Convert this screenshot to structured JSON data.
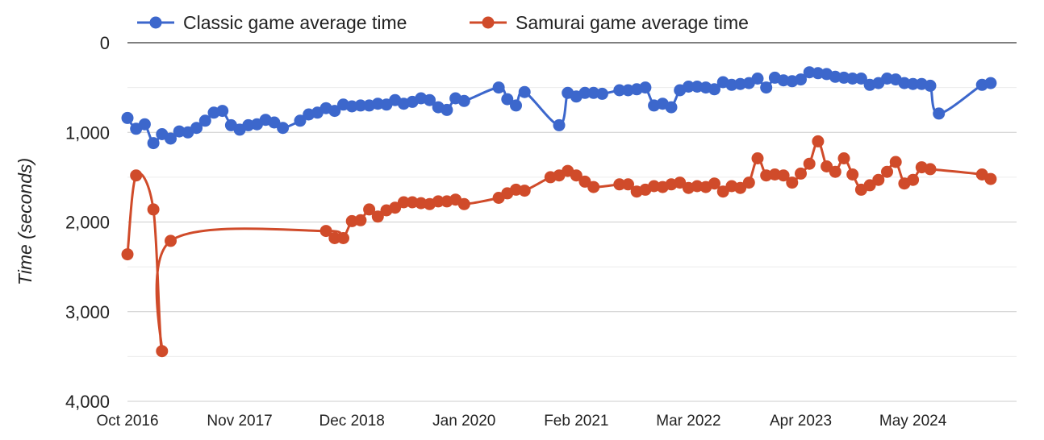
{
  "chart_data": {
    "type": "line",
    "title": "",
    "xlabel": "",
    "ylabel": "Time (seconds)",
    "y_reversed": true,
    "ylim": [
      0,
      4000
    ],
    "y_ticks": [
      0,
      1000,
      2000,
      3000,
      4000
    ],
    "y_tick_labels": [
      "0",
      "1,000",
      "2,000",
      "3,000",
      "4,000"
    ],
    "x_tick_labels": [
      "Oct 2016",
      "Nov 2017",
      "Dec 2018",
      "Jan 2020",
      "Feb 2021",
      "Mar 2022",
      "Apr 2023",
      "May 2024"
    ],
    "x_ticks": [
      "2016-10",
      "2017-11",
      "2018-12",
      "2020-01",
      "2021-02",
      "2022-03",
      "2023-04",
      "2024-05"
    ],
    "xlim": [
      "2016-10",
      "2025-05"
    ],
    "grid": true,
    "legend_position": "top",
    "series": [
      {
        "name": "Classic game average time",
        "color": "#3c67cc",
        "points": [
          [
            "2016-10",
            840
          ],
          [
            "2016-11",
            960
          ],
          [
            "2016-12",
            910
          ],
          [
            "2017-01",
            1120
          ],
          [
            "2017-02",
            1020
          ],
          [
            "2017-03",
            1070
          ],
          [
            "2017-04",
            990
          ],
          [
            "2017-05",
            1000
          ],
          [
            "2017-06",
            950
          ],
          [
            "2017-07",
            870
          ],
          [
            "2017-08",
            780
          ],
          [
            "2017-09",
            760
          ],
          [
            "2017-10",
            920
          ],
          [
            "2017-11",
            970
          ],
          [
            "2017-12",
            920
          ],
          [
            "2018-01",
            910
          ],
          [
            "2018-02",
            860
          ],
          [
            "2018-03",
            890
          ],
          [
            "2018-04",
            950
          ],
          [
            "2018-06",
            870
          ],
          [
            "2018-07",
            800
          ],
          [
            "2018-08",
            780
          ],
          [
            "2018-09",
            730
          ],
          [
            "2018-10",
            760
          ],
          [
            "2018-11",
            690
          ],
          [
            "2018-12",
            710
          ],
          [
            "2019-01",
            700
          ],
          [
            "2019-02",
            700
          ],
          [
            "2019-03",
            680
          ],
          [
            "2019-04",
            690
          ],
          [
            "2019-05",
            640
          ],
          [
            "2019-06",
            680
          ],
          [
            "2019-07",
            660
          ],
          [
            "2019-08",
            620
          ],
          [
            "2019-09",
            640
          ],
          [
            "2019-10",
            720
          ],
          [
            "2019-11",
            750
          ],
          [
            "2019-12",
            620
          ],
          [
            "2020-01",
            650
          ],
          [
            "2020-05",
            500
          ],
          [
            "2020-06",
            630
          ],
          [
            "2020-07",
            700
          ],
          [
            "2020-08",
            550
          ],
          [
            "2020-12",
            920
          ],
          [
            "2021-01",
            560
          ],
          [
            "2021-02",
            600
          ],
          [
            "2021-03",
            560
          ],
          [
            "2021-04",
            560
          ],
          [
            "2021-05",
            570
          ],
          [
            "2021-07",
            530
          ],
          [
            "2021-08",
            530
          ],
          [
            "2021-09",
            520
          ],
          [
            "2021-10",
            500
          ],
          [
            "2021-11",
            700
          ],
          [
            "2021-12",
            680
          ],
          [
            "2022-01",
            720
          ],
          [
            "2022-02",
            530
          ],
          [
            "2022-03",
            490
          ],
          [
            "2022-04",
            490
          ],
          [
            "2022-05",
            500
          ],
          [
            "2022-06",
            520
          ],
          [
            "2022-07",
            440
          ],
          [
            "2022-08",
            470
          ],
          [
            "2022-09",
            460
          ],
          [
            "2022-10",
            450
          ],
          [
            "2022-11",
            400
          ],
          [
            "2022-12",
            500
          ],
          [
            "2023-01",
            390
          ],
          [
            "2023-02",
            420
          ],
          [
            "2023-03",
            430
          ],
          [
            "2023-04",
            410
          ],
          [
            "2023-05",
            330
          ],
          [
            "2023-06",
            340
          ],
          [
            "2023-07",
            350
          ],
          [
            "2023-08",
            380
          ],
          [
            "2023-09",
            390
          ],
          [
            "2023-10",
            400
          ],
          [
            "2023-11",
            400
          ],
          [
            "2023-12",
            470
          ],
          [
            "2024-01",
            450
          ],
          [
            "2024-02",
            400
          ],
          [
            "2024-03",
            410
          ],
          [
            "2024-04",
            450
          ],
          [
            "2024-05",
            460
          ],
          [
            "2024-06",
            460
          ],
          [
            "2024-07",
            480
          ],
          [
            "2024-08",
            790
          ],
          [
            "2025-01",
            470
          ],
          [
            "2025-02",
            450
          ]
        ]
      },
      {
        "name": "Samurai game average time",
        "color": "#d04b2a",
        "points": [
          [
            "2016-10",
            2360
          ],
          [
            "2016-11",
            1480
          ],
          [
            "2017-01",
            1860
          ],
          [
            "2017-02",
            3440
          ],
          [
            "2017-03",
            2210
          ],
          [
            "2018-09",
            2100
          ],
          [
            "2018-10",
            2180
          ],
          [
            "2018-11",
            2180
          ],
          [
            "2018-12",
            1990
          ],
          [
            "2019-01",
            1980
          ],
          [
            "2019-02",
            1860
          ],
          [
            "2019-03",
            1940
          ],
          [
            "2019-04",
            1870
          ],
          [
            "2019-05",
            1840
          ],
          [
            "2019-06",
            1780
          ],
          [
            "2019-07",
            1780
          ],
          [
            "2019-08",
            1790
          ],
          [
            "2019-09",
            1800
          ],
          [
            "2019-10",
            1770
          ],
          [
            "2019-11",
            1770
          ],
          [
            "2019-12",
            1750
          ],
          [
            "2020-01",
            1800
          ],
          [
            "2020-05",
            1730
          ],
          [
            "2020-06",
            1680
          ],
          [
            "2020-07",
            1640
          ],
          [
            "2020-08",
            1650
          ],
          [
            "2020-11",
            1500
          ],
          [
            "2020-12",
            1480
          ],
          [
            "2021-01",
            1430
          ],
          [
            "2021-02",
            1480
          ],
          [
            "2021-03",
            1550
          ],
          [
            "2021-04",
            1610
          ],
          [
            "2021-07",
            1580
          ],
          [
            "2021-08",
            1580
          ],
          [
            "2021-09",
            1660
          ],
          [
            "2021-10",
            1640
          ],
          [
            "2021-11",
            1600
          ],
          [
            "2021-12",
            1610
          ],
          [
            "2022-01",
            1580
          ],
          [
            "2022-02",
            1560
          ],
          [
            "2022-03",
            1620
          ],
          [
            "2022-04",
            1600
          ],
          [
            "2022-05",
            1610
          ],
          [
            "2022-06",
            1570
          ],
          [
            "2022-07",
            1660
          ],
          [
            "2022-08",
            1600
          ],
          [
            "2022-09",
            1620
          ],
          [
            "2022-10",
            1560
          ],
          [
            "2022-11",
            1290
          ],
          [
            "2022-12",
            1480
          ],
          [
            "2023-01",
            1470
          ],
          [
            "2023-02",
            1480
          ],
          [
            "2023-03",
            1560
          ],
          [
            "2023-04",
            1460
          ],
          [
            "2023-05",
            1350
          ],
          [
            "2023-06",
            1100
          ],
          [
            "2023-07",
            1380
          ],
          [
            "2023-08",
            1440
          ],
          [
            "2023-09",
            1290
          ],
          [
            "2023-10",
            1470
          ],
          [
            "2023-11",
            1640
          ],
          [
            "2023-12",
            1590
          ],
          [
            "2024-01",
            1530
          ],
          [
            "2024-02",
            1440
          ],
          [
            "2024-03",
            1330
          ],
          [
            "2024-04",
            1570
          ],
          [
            "2024-05",
            1530
          ],
          [
            "2024-06",
            1390
          ],
          [
            "2024-07",
            1410
          ],
          [
            "2025-01",
            1470
          ],
          [
            "2025-02",
            1520
          ]
        ]
      }
    ]
  }
}
